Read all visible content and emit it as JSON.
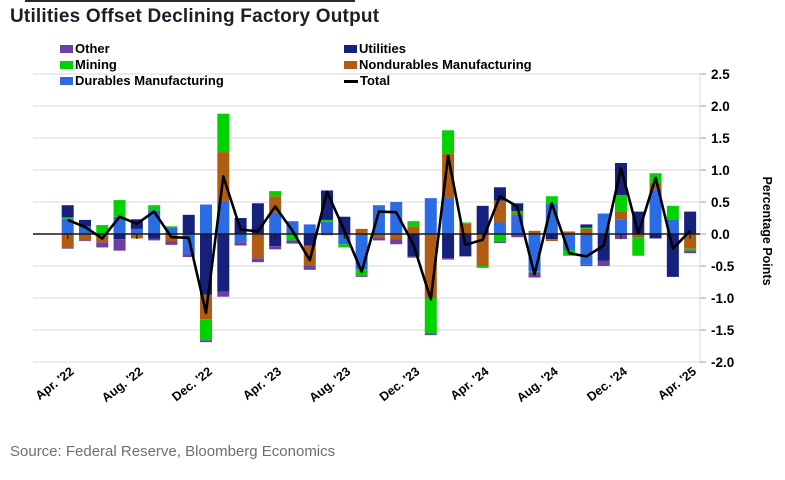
{
  "title": "Utilities Offset Declining Factory Output",
  "source": "Source: Federal Reserve, Bloomberg Economics",
  "legend": {
    "columns": [
      [
        {
          "label": "Other",
          "color": "#6d3fa4",
          "type": "box"
        },
        {
          "label": "Mining",
          "color": "#00d300",
          "type": "box"
        },
        {
          "label": "Durables Manufacturing",
          "color": "#2b6be4",
          "type": "box"
        }
      ],
      [
        {
          "label": "Utilities",
          "color": "#16207d",
          "type": "box"
        },
        {
          "label": "Nondurables Manufacturing",
          "color": "#b05c12",
          "type": "box"
        },
        {
          "label": "Total",
          "color": "#000000",
          "type": "line"
        }
      ]
    ]
  },
  "y_axis": {
    "label": "Percentage Points",
    "tick_labels": [
      "2.5",
      "2.0",
      "1.5",
      "1.0",
      "0.5",
      "0.0",
      "-0.5",
      "-1.0",
      "-1.5",
      "-2.0"
    ],
    "tick_values": [
      2.5,
      2.0,
      1.5,
      1.0,
      0.5,
      0.0,
      -0.5,
      -1.0,
      -1.5,
      -2.0
    ]
  },
  "x_axis": {
    "tick_labels": [
      "Apr. '22",
      "Aug. '22",
      "Dec. '22",
      "Apr. '23",
      "Aug. '23",
      "Dec. '23",
      "Apr. '24",
      "Aug. '24",
      "Dec. '24",
      "Apr. '25"
    ],
    "tick_month_index": [
      0,
      4,
      8,
      12,
      16,
      20,
      24,
      28,
      32,
      36
    ]
  },
  "chart_data": {
    "type": "bar",
    "subtype": "stacked-bar-with-line",
    "title": "Utilities Offset Declining Factory Output",
    "ylabel": "Percentage Points",
    "ylim": [
      -2.0,
      2.5
    ],
    "grid": "horizontal",
    "legend_position": "top",
    "categories": [
      "Apr '22",
      "May '22",
      "Jun '22",
      "Jul '22",
      "Aug '22",
      "Sep '22",
      "Oct '22",
      "Nov '22",
      "Dec '22",
      "Jan '23",
      "Feb '23",
      "Mar '23",
      "Apr '23",
      "May '23",
      "Jun '23",
      "Jul '23",
      "Aug '23",
      "Sep '23",
      "Oct '23",
      "Nov '23",
      "Dec '23",
      "Jan '24",
      "Feb '24",
      "Mar '24",
      "Apr '24",
      "May '24",
      "Jun '24",
      "Jul '24",
      "Aug '24",
      "Sep '24",
      "Oct '24",
      "Nov '24",
      "Dec '24",
      "Jan '25",
      "Feb '25",
      "Mar '25",
      "Apr '25"
    ],
    "series": [
      {
        "name": "Other",
        "color": "#6d3fa4",
        "values": [
          -0.01,
          -0.01,
          -0.08,
          -0.18,
          0,
          -0.03,
          -0.06,
          -0.06,
          -0.03,
          -0.08,
          -0.05,
          -0.06,
          -0.05,
          -0.05,
          -0.06,
          0,
          0,
          -0.02,
          -0.05,
          -0.08,
          -0.02,
          -0.03,
          -0.02,
          0,
          0,
          -0.02,
          -0.05,
          -0.08,
          0,
          0,
          -0.02,
          -0.08,
          -0.08,
          0,
          0,
          0,
          -0.04
        ]
      },
      {
        "name": "Mining",
        "color": "#00d300",
        "values": [
          0.02,
          0,
          0.14,
          0.26,
          0,
          0.08,
          0.02,
          0,
          -0.33,
          0.6,
          0,
          0,
          0.08,
          -0.1,
          0,
          0.03,
          -0.05,
          -0.1,
          0,
          0,
          0.08,
          -0.55,
          0.36,
          0.02,
          -0.03,
          -0.12,
          0.04,
          -0.02,
          0.11,
          -0.09,
          0.02,
          0,
          0.26,
          -0.28,
          0.16,
          0.21,
          -0.03
        ]
      },
      {
        "name": "Durables Manufacturing",
        "color": "#2b6be4",
        "values": [
          0.24,
          0.12,
          -0.03,
          0.27,
          0.08,
          0.37,
          0.1,
          -0.3,
          0.46,
          0.5,
          -0.13,
          0,
          0.33,
          0.2,
          0.15,
          0.19,
          -0.16,
          -0.55,
          0.45,
          0.5,
          0,
          0.56,
          0.56,
          0,
          0,
          0.18,
          0.3,
          -0.58,
          0.48,
          -0.25,
          -0.48,
          0.32,
          0.22,
          0,
          0.7,
          0.23,
          0
        ]
      },
      {
        "name": "Utilities",
        "color": "#16207d",
        "values": [
          0.19,
          0.1,
          0,
          -0.08,
          0.15,
          -0.07,
          0,
          0.3,
          -0.95,
          -0.9,
          0.25,
          0.48,
          -0.19,
          0,
          -0.18,
          0.46,
          0.27,
          0,
          0,
          0,
          -0.35,
          0,
          -0.38,
          -0.35,
          0.44,
          0.21,
          0.12,
          0,
          -0.08,
          0,
          0.05,
          -0.42,
          0.5,
          0.35,
          -0.07,
          -0.67,
          0.35
        ]
      },
      {
        "name": "Nondurables Manufacturing",
        "color": "#b05c12",
        "values": [
          -0.22,
          -0.1,
          -0.1,
          0,
          -0.07,
          0,
          -0.11,
          0,
          -0.38,
          0.78,
          0,
          -0.38,
          0.26,
          0,
          -0.32,
          -0.02,
          0,
          0.08,
          -0.05,
          -0.08,
          0.12,
          -1.0,
          0.7,
          0.16,
          -0.5,
          0.34,
          0.02,
          0.05,
          -0.03,
          0.04,
          0.08,
          0,
          0.13,
          -0.06,
          0.09,
          0,
          -0.23
        ]
      }
    ],
    "total_line": {
      "name": "Total",
      "color": "#000000",
      "values": [
        0.22,
        0.11,
        -0.07,
        0.27,
        0.16,
        0.35,
        -0.05,
        -0.06,
        -1.23,
        0.9,
        0.07,
        0.04,
        0.43,
        0.05,
        -0.41,
        0.66,
        0.06,
        -0.59,
        0.35,
        0.34,
        -0.17,
        -1.02,
        1.22,
        -0.17,
        -0.09,
        0.59,
        0.43,
        -0.63,
        0.48,
        -0.3,
        -0.35,
        -0.18,
        1.03,
        0.01,
        0.88,
        -0.23,
        0.05
      ]
    }
  },
  "colors": {
    "grid": "#d8d8d8",
    "zero_line": "#1a1a1a",
    "axis_tick": "#9a9a9a",
    "axis_text": "#000000",
    "title_text": "#1c1e2a",
    "source_text": "#6f6f6f"
  }
}
